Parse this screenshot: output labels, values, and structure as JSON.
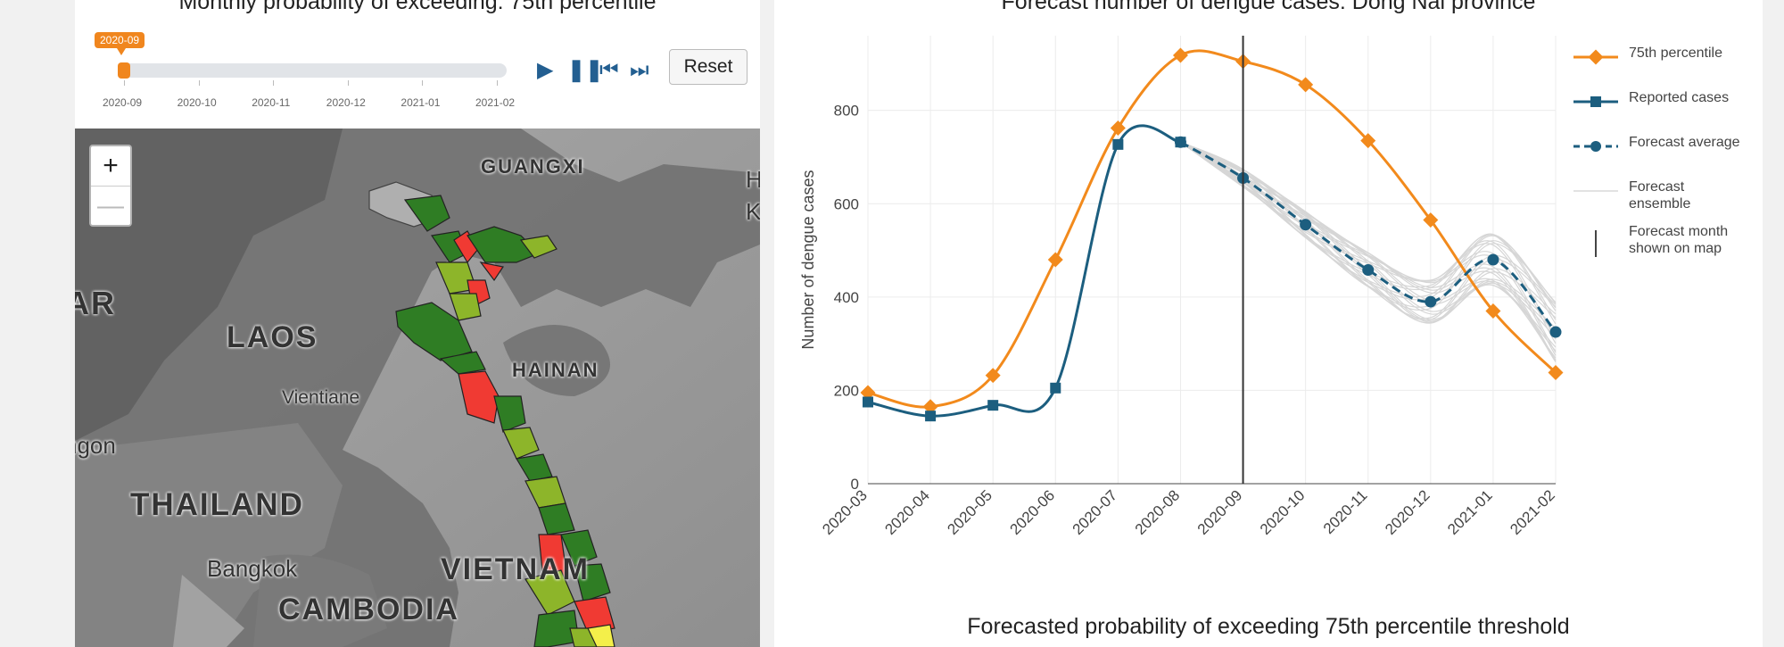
{
  "left": {
    "title": "Monthly probability of exceeding: 75th percentile",
    "slider": {
      "current_label": "2020-09",
      "ticks": [
        "2020-09",
        "2020-10",
        "2020-11",
        "2020-12",
        "2021-01",
        "2021-02"
      ],
      "progress_fraction": 0.0
    },
    "controls": {
      "play": "play",
      "pause": "pause",
      "prev": "prev",
      "next": "next"
    },
    "reset_label": "Reset",
    "zoom_in": "+",
    "zoom_out": "—",
    "map_labels": {
      "guangxi": "GUANGXI",
      "laos": "LAOS",
      "hainan": "HAINAN",
      "vientiane": "Vientiane",
      "thailand": "THAILAND",
      "bangkok": "Bangkok",
      "vietnam": "VIETNAM",
      "cambodia": "CAMBODIA",
      "ar": "AR",
      "ngon": "ngon",
      "hk": "H",
      "hk2": "K"
    },
    "colors": {
      "dark_green": "#2f7d24",
      "light_green": "#8db52a",
      "red": "#f03a33",
      "yellow": "#f4ef4a"
    }
  },
  "right": {
    "title": "Forecast number of dengue cases: Dong Nai province",
    "bottom_title": "Forecasted probability of exceeding 75th percentile threshold",
    "legend": {
      "p75": "75th percentile",
      "reported": "Reported cases",
      "forecast_avg": "Forecast average",
      "ensemble": "Forecast ensemble",
      "month_line": "Forecast month shown on map"
    },
    "colors": {
      "orange": "#f28a1c",
      "blue": "#1c5e7f",
      "grey": "#cfcfcf",
      "dark": "#333333"
    }
  },
  "chart_data": {
    "type": "line",
    "title": "Forecast number of dengue cases: Dong Nai province",
    "xlabel": "",
    "ylabel": "Number of dengue cases",
    "categories": [
      "2020-03",
      "2020-04",
      "2020-05",
      "2020-06",
      "2020-07",
      "2020-08",
      "2020-09",
      "2020-10",
      "2020-11",
      "2020-12",
      "2021-01",
      "2021-02"
    ],
    "yticks": [
      "0",
      "200",
      "400",
      "600",
      "800"
    ],
    "ylim": [
      0,
      960
    ],
    "vline_category": "2020-09",
    "series": [
      {
        "name": "75th percentile",
        "values": [
          195,
          165,
          232,
          480,
          762,
          918,
          905,
          855,
          735,
          565,
          370,
          238
        ]
      },
      {
        "name": "Reported cases",
        "values": [
          175,
          145,
          168,
          205,
          727,
          732,
          null,
          null,
          null,
          null,
          null,
          null
        ]
      },
      {
        "name": "Forecast average",
        "values": [
          null,
          null,
          null,
          null,
          null,
          732,
          655,
          555,
          458,
          390,
          480,
          325
        ]
      }
    ]
  }
}
